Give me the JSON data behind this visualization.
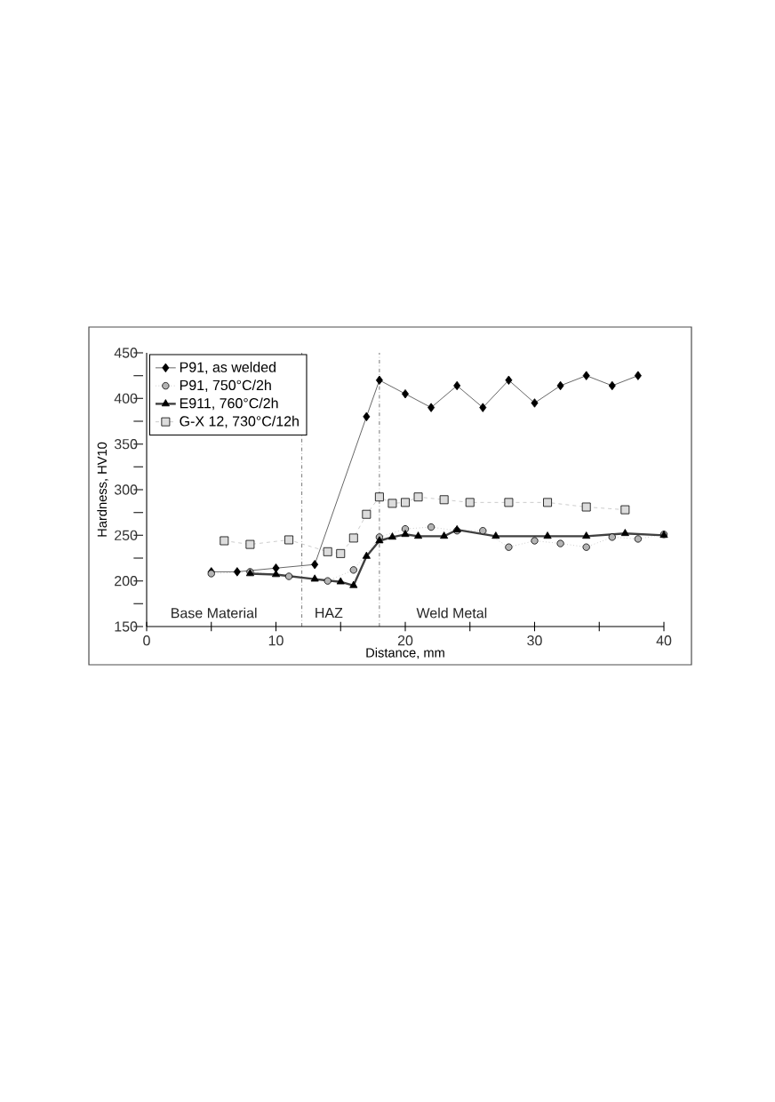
{
  "chart_data": {
    "type": "line",
    "xlabel": "Distance, mm",
    "ylabel": "Hardness, HV10",
    "xlim": [
      0,
      40
    ],
    "ylim": [
      150,
      450
    ],
    "xticks": [
      0,
      {
        "value": 5,
        "label": null
      },
      10,
      {
        "value": 15,
        "label": null
      },
      20,
      {
        "value": 25,
        "label": null
      },
      30,
      {
        "value": 35,
        "label": null
      },
      40
    ],
    "yticks": [
      150,
      {
        "value": 175,
        "label": null
      },
      200,
      {
        "value": 225,
        "label": null
      },
      250,
      {
        "value": 275,
        "label": null
      },
      300,
      {
        "value": 325,
        "label": null
      },
      350,
      {
        "value": 375,
        "label": null
      },
      400,
      {
        "value": 425,
        "label": null
      },
      450
    ],
    "grid": false,
    "legend": "top left",
    "series": [
      {
        "name": "P91,  as welded",
        "color": "#000000",
        "marker": "diamond",
        "line_style": "solid",
        "x": [
          5,
          7,
          10,
          13,
          17,
          18,
          20,
          22,
          24,
          26,
          28,
          30,
          32,
          34,
          36,
          38
        ],
        "values": [
          210,
          210,
          214,
          218,
          380,
          420,
          405,
          390,
          414,
          390,
          420,
          395,
          414,
          425,
          414,
          425
        ]
      },
      {
        "name": "P91,  750°C/2h",
        "color": "#b4b4b4",
        "marker": "circle",
        "line_style": "dotted",
        "x": [
          5,
          8,
          11,
          14,
          16,
          18,
          20,
          22,
          24,
          26,
          28,
          30,
          32,
          34,
          36,
          38,
          40
        ],
        "values": [
          208,
          210,
          205,
          200,
          212,
          248,
          257,
          259,
          255,
          255,
          237,
          244,
          241,
          237,
          248,
          246,
          251
        ]
      },
      {
        "name": "E911,  760°C/2h",
        "color": "#000000",
        "marker": "triangle",
        "line_style": "solid",
        "x": [
          8,
          10,
          13,
          15,
          16,
          17,
          18,
          19,
          20,
          21,
          23,
          24,
          27,
          31,
          34,
          37,
          40
        ],
        "values": [
          208,
          207,
          202,
          199,
          195,
          227,
          244,
          248,
          251,
          249,
          249,
          256,
          249,
          249,
          249,
          252,
          250
        ]
      },
      {
        "name": "G-X 12,  730°C/12h",
        "color": "#dcdcdc",
        "marker": "square",
        "line_style": "dashed",
        "x": [
          6,
          8,
          11,
          14,
          15,
          16,
          17,
          18,
          19,
          20,
          21,
          23,
          25,
          28,
          31,
          34,
          37
        ],
        "values": [
          244,
          240,
          245,
          232,
          230,
          247,
          273,
          292,
          285,
          286,
          292,
          289,
          286,
          286,
          286,
          281,
          278
        ]
      }
    ],
    "ref_lines": [
      {
        "axis": "x",
        "value": 12,
        "line_style": "dashdot"
      },
      {
        "axis": "x",
        "value": 18,
        "line_style": "dashdot"
      }
    ],
    "annotations": [
      "Base Material",
      "HAZ",
      "Weld Metal"
    ]
  }
}
